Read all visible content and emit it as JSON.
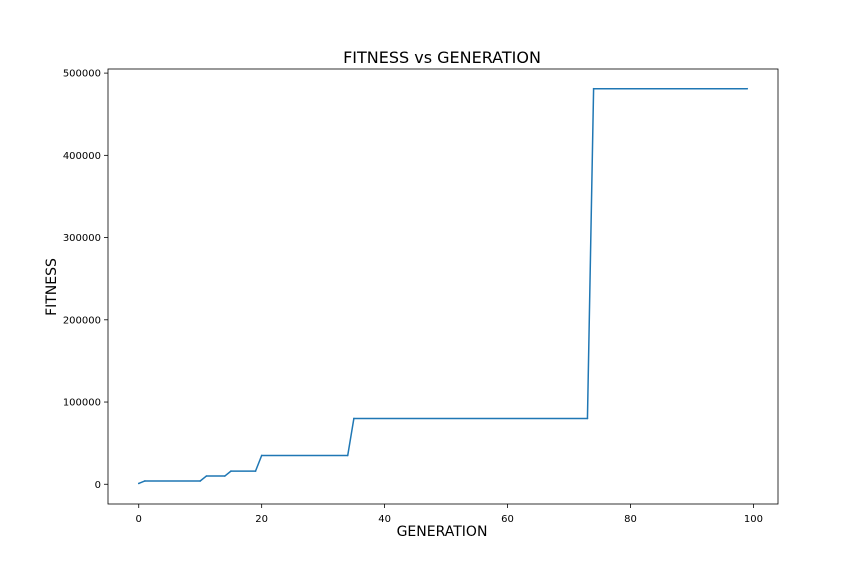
{
  "chart_data": {
    "type": "line",
    "title": "FITNESS vs GENERATION",
    "xlabel": "GENERATION",
    "ylabel": "FITNESS",
    "xlim": [
      -5,
      104
    ],
    "ylim": [
      -24000,
      505000
    ],
    "x_ticks": [
      0,
      20,
      40,
      60,
      80,
      100
    ],
    "y_ticks": [
      0,
      100000,
      200000,
      300000,
      400000,
      500000
    ],
    "x_tick_labels": [
      "0",
      "20",
      "40",
      "60",
      "80",
      "100"
    ],
    "y_tick_labels": [
      "0",
      "100000",
      "200000",
      "300000",
      "400000",
      "500000"
    ],
    "grid": false,
    "line_color": "#1f77b4",
    "series": [
      {
        "x": [
          0,
          1,
          10,
          11,
          14,
          15,
          19,
          20,
          34,
          35,
          73,
          74,
          99
        ],
        "y": [
          1000,
          4000,
          4000,
          10000,
          10000,
          16000,
          16000,
          35000,
          35000,
          80000,
          80000,
          481000,
          481000
        ]
      }
    ]
  }
}
